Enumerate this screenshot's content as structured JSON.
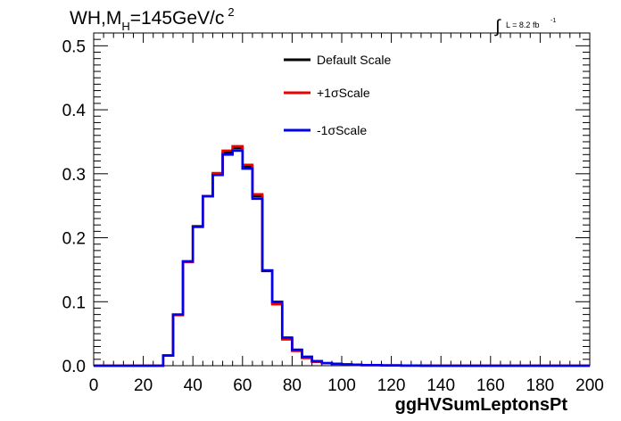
{
  "chart_data": {
    "type": "line",
    "title_main": "WH,M",
    "title_sub": "H",
    "title_rest": "=145GeV/c",
    "title_sup": "2",
    "lumi_symbol": "∫",
    "lumi_text": "L = 8.2 fb",
    "lumi_sup": "-1",
    "xlabel": "ggHVSumLeptonsPt",
    "ylabel": "",
    "xlim": [
      0,
      200
    ],
    "ylim": [
      0,
      0.52
    ],
    "xticks": [
      0,
      20,
      40,
      60,
      80,
      100,
      120,
      140,
      160,
      180,
      200
    ],
    "xtick_labels": [
      "0",
      "20",
      "40",
      "60",
      "80",
      "100",
      "120",
      "140",
      "160",
      "180",
      "200"
    ],
    "yticks": [
      0,
      0.1,
      0.2,
      0.3,
      0.4,
      0.5
    ],
    "ytick_labels": [
      "0.0",
      "0.1",
      "0.2",
      "0.3",
      "0.4",
      "0.5"
    ],
    "bin_width": 4,
    "legend_position": "top-center",
    "series": [
      {
        "name": "Default Scale",
        "color": "#000000",
        "values": [
          0,
          0,
          0,
          0,
          0,
          0,
          0,
          0.016,
          0.08,
          0.163,
          0.218,
          0.265,
          0.3,
          0.333,
          0.34,
          0.311,
          0.265,
          0.148,
          0.097,
          0.042,
          0.024,
          0.013,
          0.007,
          0.004,
          0.003,
          0.002,
          0.0015,
          0.001,
          0.001,
          0.0005,
          0.0004,
          0.0003,
          0.0002,
          0.0001,
          0,
          0,
          0,
          0,
          0,
          0,
          0,
          0,
          0,
          0,
          0,
          0,
          0,
          0,
          0,
          0
        ]
      },
      {
        "name": "+1σScale",
        "color": "#ee0000",
        "values": [
          0,
          0,
          0,
          0,
          0,
          0,
          0,
          0.016,
          0.079,
          0.162,
          0.217,
          0.265,
          0.301,
          0.336,
          0.343,
          0.314,
          0.268,
          0.149,
          0.096,
          0.041,
          0.023,
          0.012,
          0.006,
          0.004,
          0.003,
          0.002,
          0.0015,
          0.001,
          0.001,
          0.0005,
          0.0004,
          0.0003,
          0.0002,
          0.0001,
          0,
          0,
          0,
          0,
          0,
          0,
          0,
          0,
          0,
          0,
          0,
          0,
          0,
          0,
          0,
          0
        ]
      },
      {
        "name": "-1σScale",
        "color": "#0000ee",
        "values": [
          0,
          0,
          0,
          0,
          0,
          0,
          0,
          0.016,
          0.08,
          0.163,
          0.217,
          0.265,
          0.298,
          0.33,
          0.336,
          0.308,
          0.261,
          0.149,
          0.1,
          0.044,
          0.025,
          0.014,
          0.007,
          0.004,
          0.003,
          0.002,
          0.0015,
          0.001,
          0.001,
          0.0005,
          0.0004,
          0.0003,
          0.0002,
          0.0001,
          0,
          0,
          0,
          0,
          0,
          0,
          0,
          0,
          0,
          0,
          0,
          0,
          0,
          0,
          0,
          0
        ]
      }
    ]
  }
}
